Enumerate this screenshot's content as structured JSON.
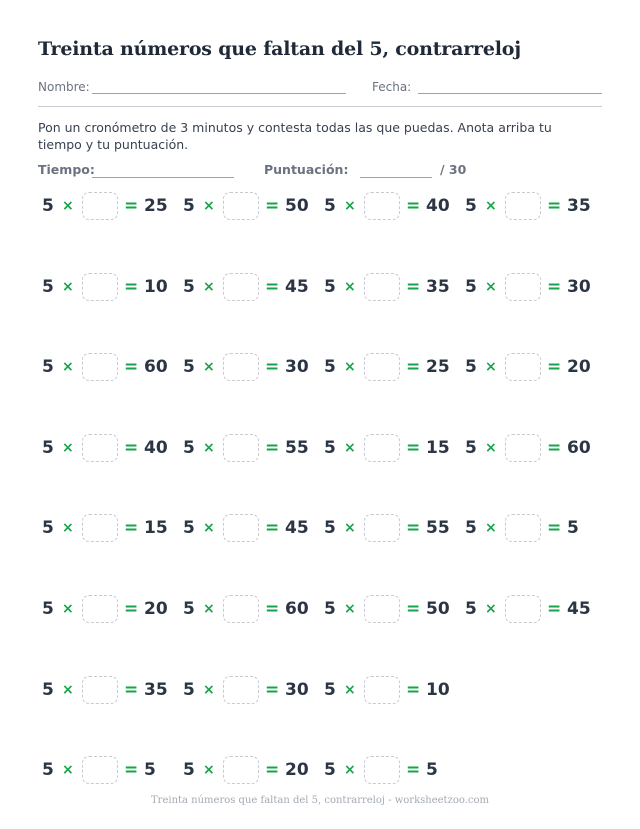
{
  "title": "Treinta números que faltan del 5, contrarreloj",
  "fields": {
    "name_label": "Nombre:",
    "date_label": "Fecha:"
  },
  "instructions": "Pon un cronómetro de 3 minutos y contesta todas las que puedas. Anota arriba tu tiempo y tu puntuación.",
  "score": {
    "time_label": "Tiempo:",
    "score_label": "Puntuación:",
    "total": "/ 30"
  },
  "operator": "×",
  "equals": "=",
  "multiplier": "5",
  "problems": [
    {
      "result": "25"
    },
    {
      "result": "50"
    },
    {
      "result": "40"
    },
    {
      "result": "35"
    },
    {
      "result": "10"
    },
    {
      "result": "45"
    },
    {
      "result": "35"
    },
    {
      "result": "30"
    },
    {
      "result": "60"
    },
    {
      "result": "30"
    },
    {
      "result": "25"
    },
    {
      "result": "20"
    },
    {
      "result": "40"
    },
    {
      "result": "55"
    },
    {
      "result": "15"
    },
    {
      "result": "60"
    },
    {
      "result": "15"
    },
    {
      "result": "45"
    },
    {
      "result": "55"
    },
    {
      "result": "5"
    },
    {
      "result": "20"
    },
    {
      "result": "60"
    },
    {
      "result": "50"
    },
    {
      "result": "45"
    },
    {
      "result": "35"
    },
    {
      "result": "30"
    },
    {
      "result": "10"
    },
    {
      "result": "5"
    },
    {
      "result": "20"
    },
    {
      "result": "5"
    }
  ],
  "footer": "Treinta números que faltan del 5, contrarreloj - worksheetzoo.com"
}
